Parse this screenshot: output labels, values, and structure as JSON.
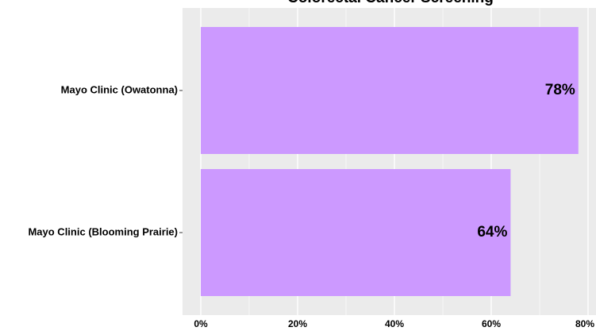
{
  "chart_data": {
    "type": "bar",
    "orientation": "horizontal",
    "title": "Colorectal Cancer Screening",
    "categories": [
      "Mayo Clinic (Owatonna)",
      "Mayo Clinic (Blooming Prairie)"
    ],
    "values": [
      78,
      64
    ],
    "data_labels": [
      "78%",
      "64%"
    ],
    "xlim": [
      0,
      80
    ],
    "x_ticks": [
      0,
      20,
      40,
      60,
      80
    ],
    "x_tick_labels": [
      "0%",
      "20%",
      "40%",
      "60%",
      "80%"
    ],
    "xlabel": "",
    "ylabel": "",
    "grid": true,
    "colors": {
      "bar": "#cc99ff",
      "panel_background": "#ebebeb",
      "gridline": "#ffffff"
    }
  }
}
